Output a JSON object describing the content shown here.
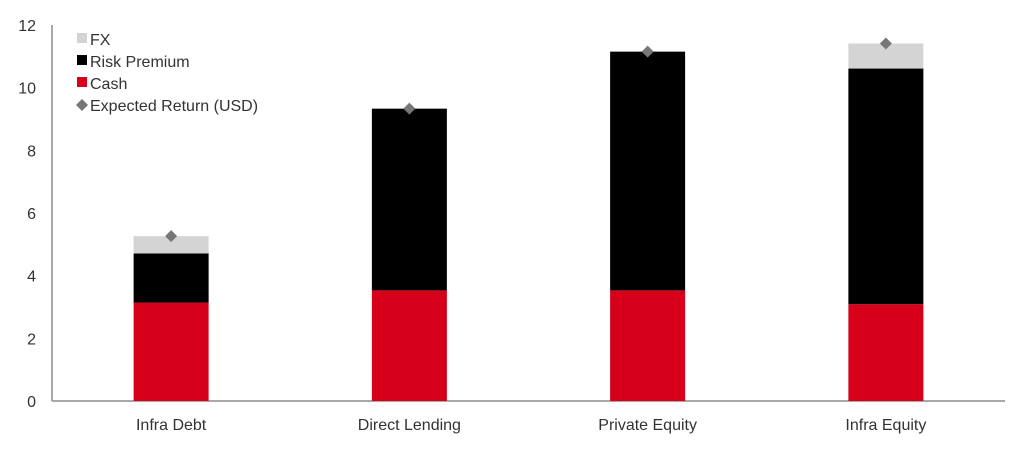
{
  "chart_data": {
    "type": "bar",
    "stacked": true,
    "categories": [
      "Infra Debt",
      "Direct Lending",
      "Private Equity",
      "Infra Equity"
    ],
    "series": [
      {
        "name": "Cash",
        "color": "#d7001b",
        "values": [
          3.14,
          3.53,
          3.53,
          3.09
        ]
      },
      {
        "name": "Risk Premium",
        "color": "#000000",
        "values": [
          1.57,
          5.8,
          7.62,
          7.52
        ]
      },
      {
        "name": "FX",
        "color": "#d4d4d4",
        "values": [
          0.55,
          0,
          0,
          0.8
        ]
      }
    ],
    "markers": {
      "name": "Expected Return (USD)",
      "color": "#777777",
      "shape": "diamond",
      "values": [
        5.26,
        9.33,
        11.15,
        11.41
      ]
    },
    "legend_order": [
      "FX",
      "Risk Premium",
      "Cash",
      "Expected Return (USD)"
    ],
    "ylim": [
      0,
      12
    ],
    "yticks": [
      0,
      2,
      4,
      6,
      8,
      10,
      12
    ],
    "grid": false,
    "legend_position": "top-left",
    "title": "",
    "xlabel": "",
    "ylabel": ""
  }
}
